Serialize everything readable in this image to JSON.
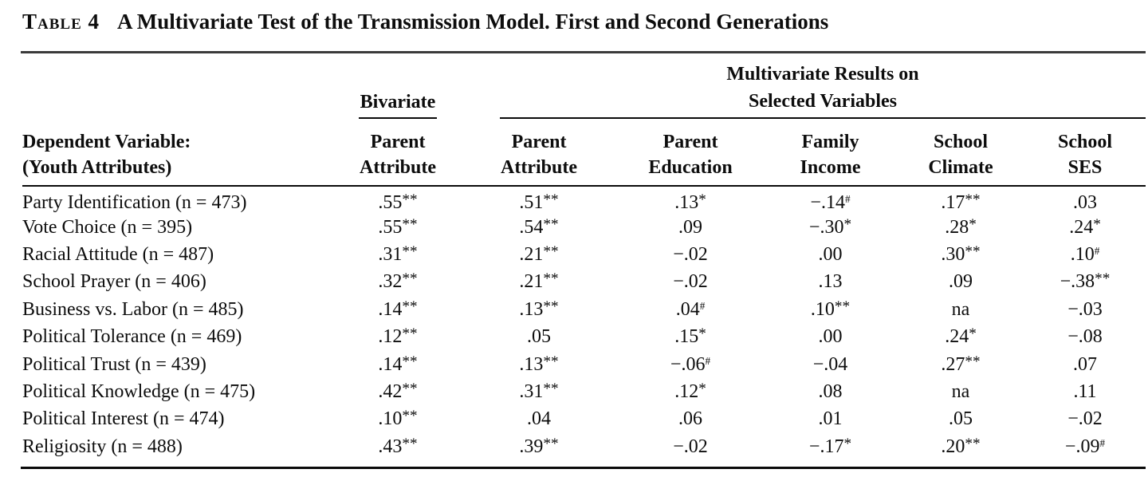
{
  "colors": {
    "text": "#0d0d0d",
    "rule_heavy": "#3a3a3a",
    "rule_light": "#0a0a0a",
    "background": "#ffffff"
  },
  "title": {
    "label": "Table 4",
    "text": "A Multivariate Test of the Transmission Model. First and Second Generations"
  },
  "table": {
    "spanner_bivariate": "Bivariate",
    "spanner_multivariate_line1": "Multivariate Results on",
    "spanner_multivariate_line2": "Selected Variables",
    "row_header": {
      "line1": "Dependent Variable:",
      "line2": "(Youth Attributes)"
    },
    "columns": [
      {
        "line1": "Parent",
        "line2": "Attribute"
      },
      {
        "line1": "Parent",
        "line2": "Attribute"
      },
      {
        "line1": "Parent",
        "line2": "Education"
      },
      {
        "line1": "Family",
        "line2": "Income"
      },
      {
        "line1": "School",
        "line2": "Climate"
      },
      {
        "line1": "School",
        "line2": "SES"
      }
    ],
    "rows": [
      {
        "label": "Party Identification (n = 473)",
        "cells": [
          {
            "v": ".55",
            "sup": "**"
          },
          {
            "v": ".51",
            "sup": "**"
          },
          {
            "v": ".13",
            "sup": "*"
          },
          {
            "v": "−.14",
            "sup": "#"
          },
          {
            "v": ".17",
            "sup": "**"
          },
          {
            "v": ".03",
            "sup": ""
          }
        ]
      },
      {
        "label": "Vote Choice (n = 395)",
        "cells": [
          {
            "v": ".55",
            "sup": "**"
          },
          {
            "v": ".54",
            "sup": "**"
          },
          {
            "v": ".09",
            "sup": ""
          },
          {
            "v": "−.30",
            "sup": "*"
          },
          {
            "v": ".28",
            "sup": "*"
          },
          {
            "v": ".24",
            "sup": "*"
          }
        ]
      },
      {
        "label": "Racial Attitude (n = 487)",
        "cells": [
          {
            "v": ".31",
            "sup": "**"
          },
          {
            "v": ".21",
            "sup": "**"
          },
          {
            "v": "−.02",
            "sup": ""
          },
          {
            "v": ".00",
            "sup": ""
          },
          {
            "v": ".30",
            "sup": "**"
          },
          {
            "v": ".10",
            "sup": "#"
          }
        ]
      },
      {
        "label": "School Prayer (n = 406)",
        "cells": [
          {
            "v": ".32",
            "sup": "**"
          },
          {
            "v": ".21",
            "sup": "**"
          },
          {
            "v": "−.02",
            "sup": ""
          },
          {
            "v": ".13",
            "sup": ""
          },
          {
            "v": ".09",
            "sup": ""
          },
          {
            "v": "−.38",
            "sup": "**"
          }
        ]
      },
      {
        "label": "Business vs. Labor (n = 485)",
        "cells": [
          {
            "v": ".14",
            "sup": "**"
          },
          {
            "v": ".13",
            "sup": "**"
          },
          {
            "v": ".04",
            "sup": "#"
          },
          {
            "v": ".10",
            "sup": "**"
          },
          {
            "v": "na",
            "sup": ""
          },
          {
            "v": "−.03",
            "sup": ""
          }
        ]
      },
      {
        "label": "Political Tolerance (n = 469)",
        "cells": [
          {
            "v": ".12",
            "sup": "**"
          },
          {
            "v": ".05",
            "sup": ""
          },
          {
            "v": ".15",
            "sup": "*"
          },
          {
            "v": ".00",
            "sup": ""
          },
          {
            "v": ".24",
            "sup": "*"
          },
          {
            "v": "−.08",
            "sup": ""
          }
        ]
      },
      {
        "label": "Political Trust (n = 439)",
        "cells": [
          {
            "v": ".14",
            "sup": "**"
          },
          {
            "v": ".13",
            "sup": "**"
          },
          {
            "v": "−.06",
            "sup": "#"
          },
          {
            "v": "−.04",
            "sup": ""
          },
          {
            "v": ".27",
            "sup": "**"
          },
          {
            "v": ".07",
            "sup": ""
          }
        ]
      },
      {
        "label": "Political Knowledge (n = 475)",
        "cells": [
          {
            "v": ".42",
            "sup": "**"
          },
          {
            "v": ".31",
            "sup": "**"
          },
          {
            "v": ".12",
            "sup": "*"
          },
          {
            "v": ".08",
            "sup": ""
          },
          {
            "v": "na",
            "sup": ""
          },
          {
            "v": ".11",
            "sup": ""
          }
        ]
      },
      {
        "label": "Political Interest (n = 474)",
        "cells": [
          {
            "v": ".10",
            "sup": "**"
          },
          {
            "v": ".04",
            "sup": ""
          },
          {
            "v": ".06",
            "sup": ""
          },
          {
            "v": ".01",
            "sup": ""
          },
          {
            "v": ".05",
            "sup": ""
          },
          {
            "v": "−.02",
            "sup": ""
          }
        ]
      },
      {
        "label": "Religiosity (n = 488)",
        "cells": [
          {
            "v": ".43",
            "sup": "**"
          },
          {
            "v": ".39",
            "sup": "**"
          },
          {
            "v": "−.02",
            "sup": ""
          },
          {
            "v": "−.17",
            "sup": "*"
          },
          {
            "v": ".20",
            "sup": "**"
          },
          {
            "v": "−.09",
            "sup": "#"
          }
        ]
      }
    ]
  }
}
